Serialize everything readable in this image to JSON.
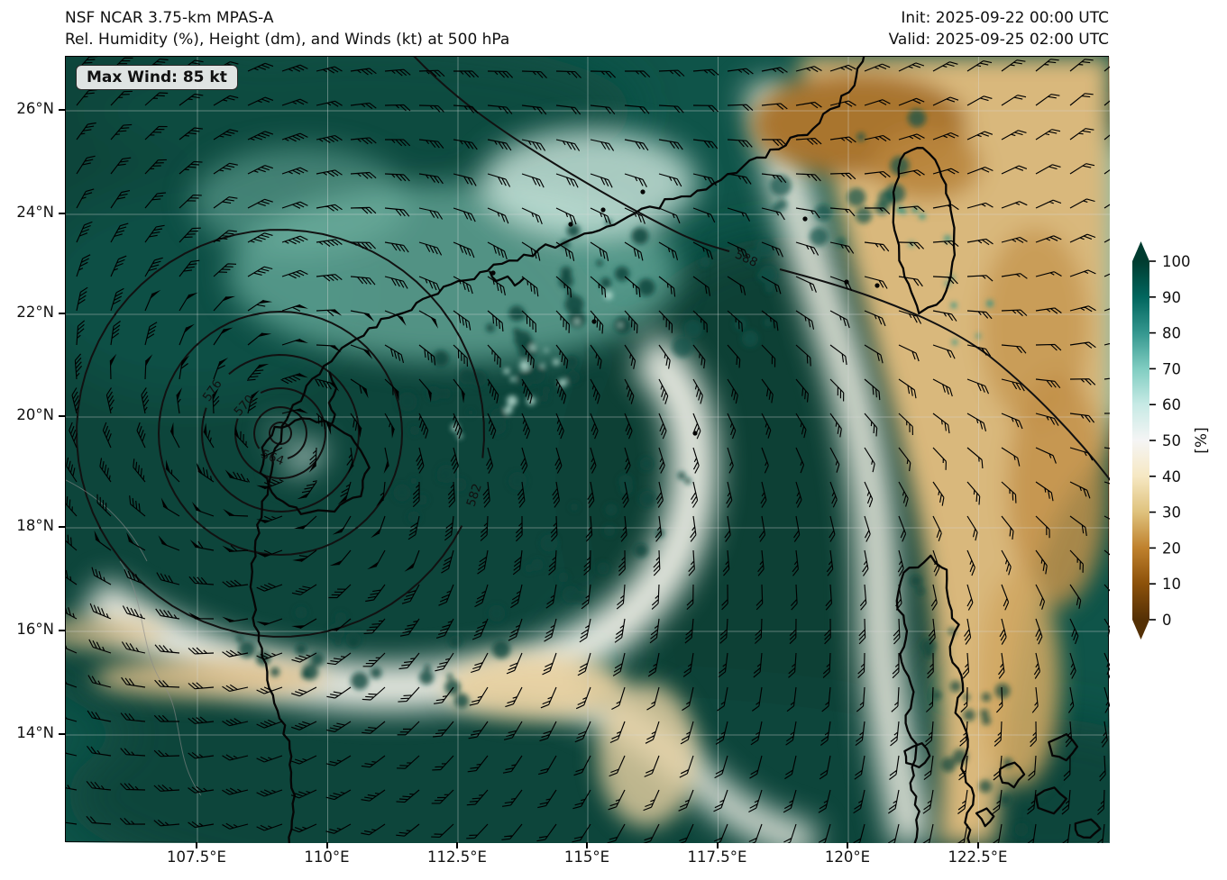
{
  "header": {
    "title_line1": "NSF NCAR 3.75-km MPAS-A",
    "title_line2": "Rel. Humidity (%), Height (dm), and Winds (kt) at 500 hPa",
    "init_label": "Init: 2025-09-22 00:00 UTC",
    "valid_label": "Valid: 2025-09-25 02:00 UTC"
  },
  "badge": {
    "max_wind": "Max Wind: 85 kt"
  },
  "axes": {
    "x_ticks": [
      "107.5°E",
      "110°E",
      "112.5°E",
      "115°E",
      "117.5°E",
      "120°E",
      "122.5°E"
    ],
    "y_ticks": [
      "26°N",
      "24°N",
      "22°N",
      "20°N",
      "18°N",
      "16°N",
      "14°N"
    ]
  },
  "contours": {
    "labels": [
      "564",
      "570",
      "576",
      "582",
      "588"
    ]
  },
  "colorbar": {
    "ticks": [
      "100",
      "90",
      "80",
      "70",
      "60",
      "50",
      "40",
      "30",
      "20",
      "10",
      "0"
    ],
    "label": "[%]",
    "colors": [
      "#543005",
      "#8c510a",
      "#bf812d",
      "#dfc27d",
      "#f6e8c3",
      "#f5f5f5",
      "#c7eae5",
      "#80cdc1",
      "#35978f",
      "#01665e",
      "#003c30"
    ]
  },
  "chart_data": {
    "type": "heatmap",
    "title": "NSF NCAR 3.75-km MPAS-A",
    "subtitle": "Rel. Humidity (%), Height (dm), and Winds (kt) at 500 hPa",
    "init": "2025-09-22 00:00 UTC",
    "valid": "2025-09-25 02:00 UTC",
    "field": "relative humidity at 500 hPa",
    "units": "%",
    "colormap": "BrBG (brown=dry, teal=moist)",
    "colorbar_range": [
      0,
      100
    ],
    "colorbar_ticks": [
      0,
      10,
      20,
      30,
      40,
      50,
      60,
      70,
      80,
      90,
      100
    ],
    "xlabel": "longitude",
    "ylabel": "latitude",
    "x_tick_lons_deg_e": [
      107.5,
      110,
      112.5,
      115,
      117.5,
      120,
      122.5
    ],
    "y_tick_lats_deg_n": [
      26,
      24,
      22,
      20,
      18,
      16,
      14
    ],
    "lon_range_deg_e": [
      105,
      125
    ],
    "lat_range_deg_n": [
      12,
      27
    ],
    "grid": true,
    "height_contour_levels_dm": [
      564,
      570,
      576,
      582,
      588
    ],
    "cyclone": {
      "center_lon_deg_e": 109.1,
      "center_lat_deg_n": 19.8,
      "innermost_height_dm": 564,
      "max_wind_kt": 85,
      "note": "closed concentric 500-hPa height contours 564-582 dm around typhoon near Hainan"
    },
    "wind_barbs": {
      "units": "kt",
      "max_kt": 85,
      "typical_far_field_kt": [
        15,
        30
      ],
      "rotation": "cyclonic around center"
    },
    "humidity_regions": [
      {
        "region": "South China Sea / around typhoon",
        "rh_percent": [
          85,
          100
        ]
      },
      {
        "region": "dry slot spiraling south and east of typhoon center",
        "rh_percent": [
          40,
          60
        ]
      },
      {
        "region": "SE China coast, Taiwan Strait, Taiwan and Philippine Sea (upper right)",
        "rh_percent": [
          10,
          40
        ]
      },
      {
        "region": "band through Luzon",
        "rh_percent": [
          30,
          50
        ]
      }
    ]
  }
}
